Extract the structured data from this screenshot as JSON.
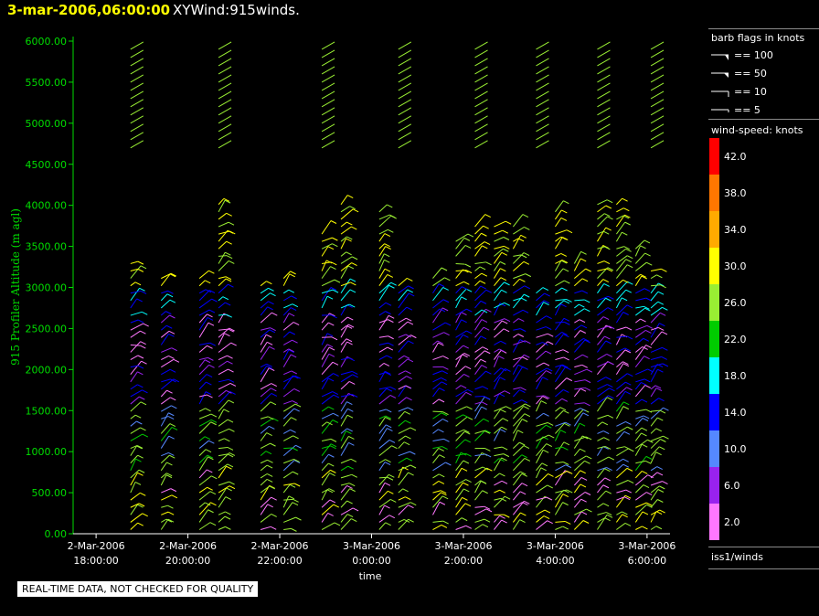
{
  "header": {
    "datetime": "3-mar-2006,06:00:00",
    "product": "XYWind:915winds."
  },
  "quality_note": "REAL-TIME DATA, NOT CHECKED FOR QUALITY",
  "legend": {
    "barb_title": "barb flags in knots",
    "barb_items": [
      "== 100",
      "== 50",
      "== 10",
      "== 5"
    ],
    "speed_title": "wind-speed: knots",
    "speed_ticks": [
      "42.0",
      "38.0",
      "34.0",
      "30.0",
      "26.0",
      "22.0",
      "18.0",
      "14.0",
      "10.0",
      "6.0",
      "2.0"
    ],
    "source": "iss1/winds"
  },
  "colors": {
    "axis_y": "#00dd00",
    "axis_x": "#ffffff",
    "colorbar": [
      "#ff0000",
      "#ff7700",
      "#ffaa00",
      "#ffff00",
      "#99ee33",
      "#00cc00",
      "#00ffff",
      "#0000ff",
      "#5588ff",
      "#9922ee",
      "#ff77ff"
    ]
  },
  "chart_data": {
    "type": "wind-barb profile time-height",
    "ylabel": "915 Profiler Altitude (m agl)",
    "xlabel": "time",
    "ylim": [
      0,
      6000
    ],
    "yticks": [
      "0.00",
      "500.00",
      "1000.00",
      "1500.00",
      "2000.00",
      "2500.00",
      "3000.00",
      "3500.00",
      "4000.00",
      "4500.00",
      "5000.00",
      "5500.00",
      "6000.00"
    ],
    "xlim": [
      "2-Mar-2006 17:30",
      "3-Mar-2006 06:30"
    ],
    "xticks": [
      {
        "date": "2-Mar-2006",
        "time": "18:00:00"
      },
      {
        "date": "2-Mar-2006",
        "time": "20:00:00"
      },
      {
        "date": "2-Mar-2006",
        "time": "22:00:00"
      },
      {
        "date": "3-Mar-2006",
        "time": "0:00:00"
      },
      {
        "date": "3-Mar-2006",
        "time": "2:00:00"
      },
      {
        "date": "3-Mar-2006",
        "time": "4:00:00"
      },
      {
        "date": "3-Mar-2006",
        "time": "6:00:00"
      }
    ],
    "profile_times": [
      "18:45",
      "19:25",
      "20:15",
      "20:40",
      "21:35",
      "22:05",
      "22:55",
      "23:20",
      "0:10",
      "0:35",
      "1:20",
      "1:50",
      "2:15",
      "2:40",
      "3:05",
      "3:35",
      "4:00",
      "4:25",
      "4:55",
      "5:20",
      "5:45",
      "6:05"
    ]
  }
}
